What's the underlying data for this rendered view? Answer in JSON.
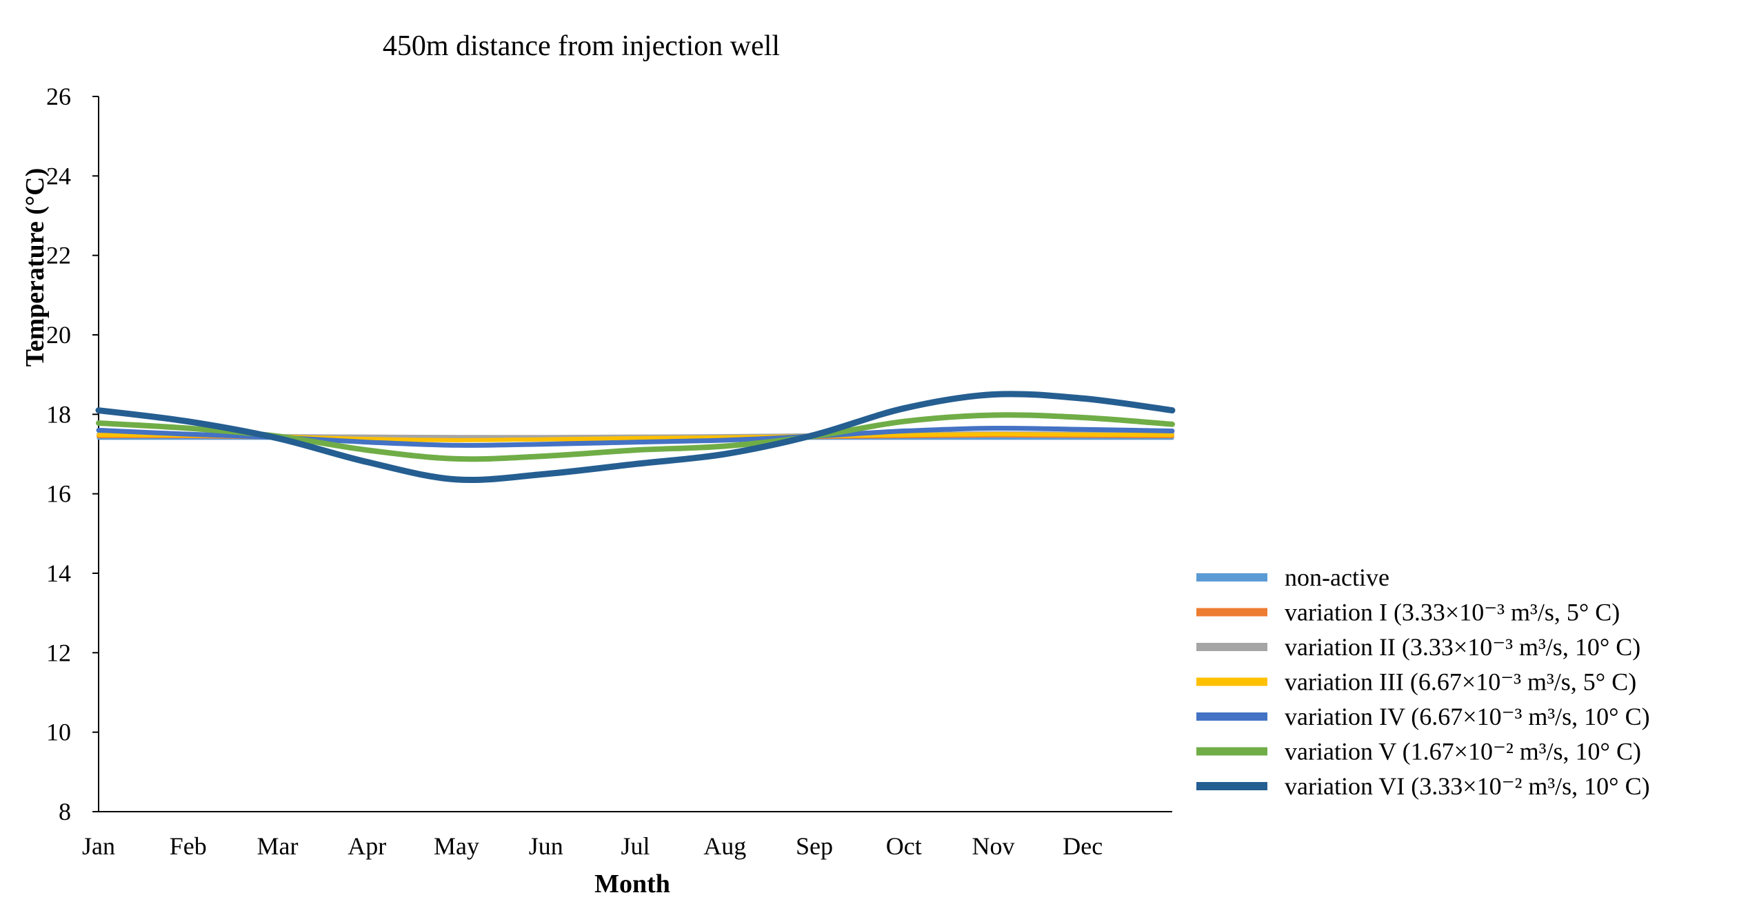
{
  "chart_data": {
    "type": "line",
    "title": "450m distance from injection well",
    "xlabel": "Month",
    "ylabel": "Temperature (°C)",
    "ylim": [
      8,
      26
    ],
    "yticks": [
      8,
      10,
      12,
      14,
      16,
      18,
      20,
      22,
      24,
      26
    ],
    "categories": [
      "Jan",
      "Feb",
      "Mar",
      "Apr",
      "May",
      "Jun",
      "Jul",
      "Aug",
      "Sep",
      "Oct",
      "Nov",
      "Dec"
    ],
    "x_end": 13,
    "x": [
      1,
      2,
      3,
      4,
      5,
      6,
      7,
      8,
      9,
      10,
      11,
      12,
      13
    ],
    "grid": false,
    "legend_position": "right",
    "series": [
      {
        "name": "non-active",
        "color": "#5B9BD5",
        "values": [
          17.4,
          17.4,
          17.4,
          17.4,
          17.4,
          17.4,
          17.4,
          17.4,
          17.4,
          17.4,
          17.4,
          17.4,
          17.4
        ]
      },
      {
        "name": "variation I (3.33×10⁻³ m³/s, 5° C)",
        "color": "#ED7D31",
        "values": [
          17.45,
          17.45,
          17.42,
          17.38,
          17.36,
          17.37,
          17.38,
          17.4,
          17.43,
          17.45,
          17.47,
          17.46,
          17.45
        ]
      },
      {
        "name": "variation II (3.33×10⁻³ m³/s, 10° C)",
        "color": "#A5A5A5",
        "values": [
          17.5,
          17.48,
          17.45,
          17.44,
          17.43,
          17.43,
          17.44,
          17.45,
          17.47,
          17.5,
          17.52,
          17.51,
          17.5
        ]
      },
      {
        "name": "variation III (6.67×10⁻³ m³/s, 5° C)",
        "color": "#FFC000",
        "values": [
          17.48,
          17.47,
          17.44,
          17.38,
          17.35,
          17.37,
          17.4,
          17.42,
          17.45,
          17.48,
          17.5,
          17.49,
          17.48
        ]
      },
      {
        "name": "variation IV (6.67×10⁻³ m³/s, 10° C)",
        "color": "#4472C4",
        "values": [
          17.6,
          17.5,
          17.42,
          17.3,
          17.22,
          17.25,
          17.3,
          17.35,
          17.45,
          17.58,
          17.65,
          17.62,
          17.58
        ]
      },
      {
        "name": "variation V (1.67×10⁻² m³/s, 10° C)",
        "color": "#70AD47",
        "values": [
          17.78,
          17.65,
          17.45,
          17.1,
          16.88,
          16.95,
          17.1,
          17.2,
          17.45,
          17.82,
          17.98,
          17.92,
          17.75
        ]
      },
      {
        "name": "variation VI (3.33×10⁻² m³/s, 10° C)",
        "color": "#255E91",
        "values": [
          18.1,
          17.82,
          17.4,
          16.8,
          16.36,
          16.5,
          16.75,
          17.0,
          17.48,
          18.15,
          18.5,
          18.4,
          18.1
        ]
      }
    ]
  }
}
